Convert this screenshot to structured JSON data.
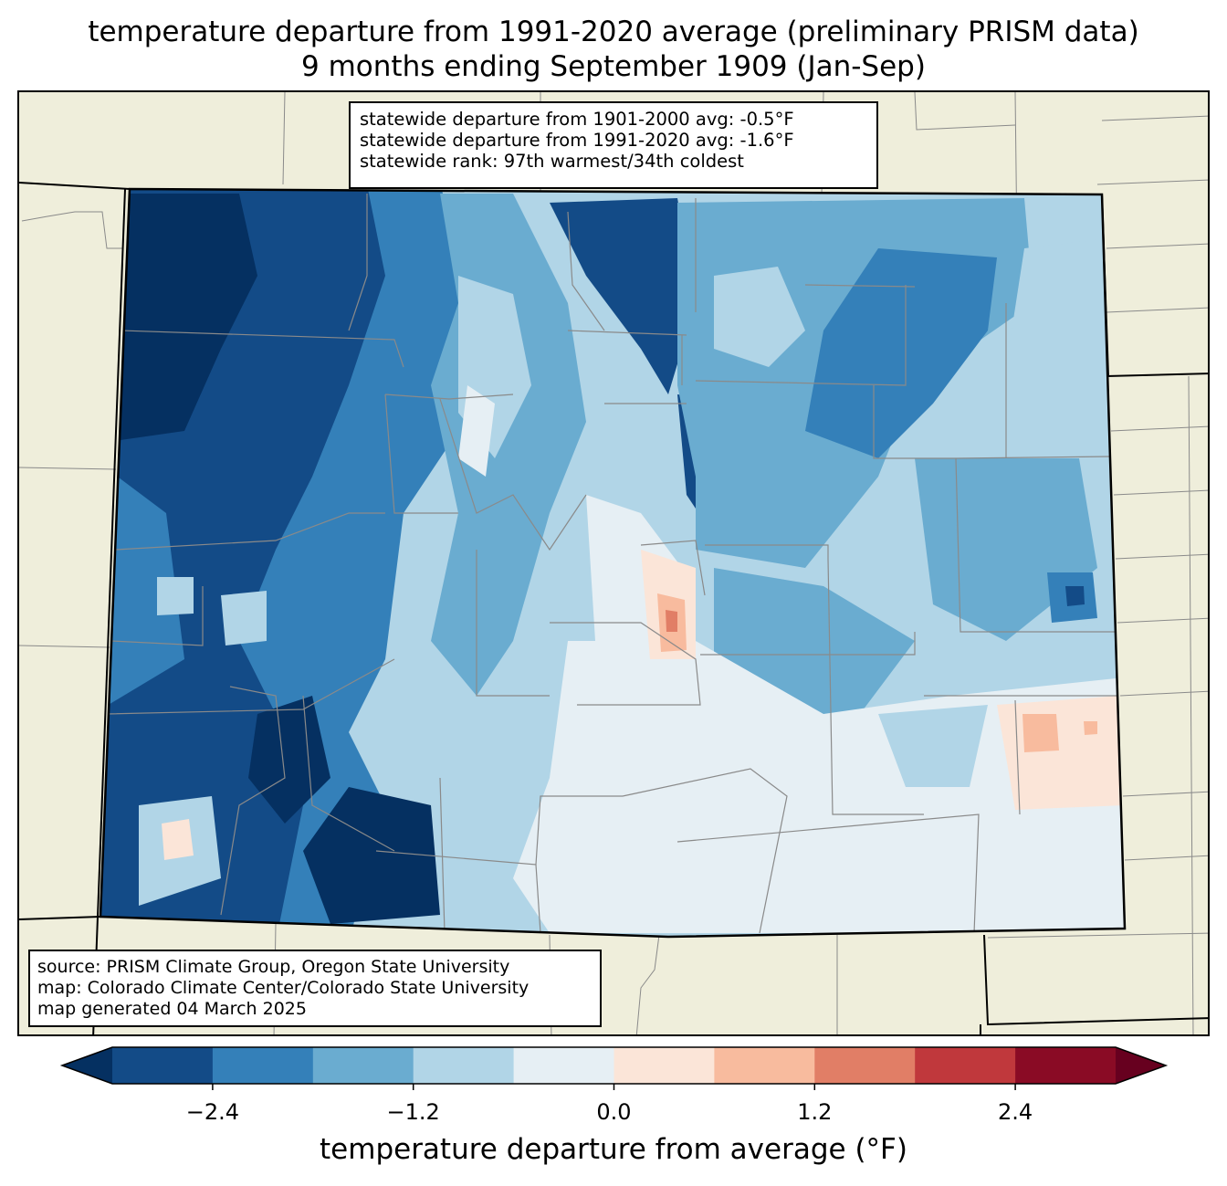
{
  "title": {
    "line1": "temperature departure from 1991-2020 average (preliminary PRISM data)",
    "line2": "9 months ending September 1909 (Jan-Sep)"
  },
  "stats_box": {
    "lines": [
      "statewide departure from 1901-2000 avg: -0.5°F",
      "statewide departure from 1991-2020 avg: -1.6°F",
      "statewide rank: 97th warmest/34th coldest"
    ]
  },
  "source_box": {
    "lines": [
      "source: PRISM Climate Group, Oregon State University",
      "map: Colorado Climate Center/Colorado State University",
      "map generated 04 March 2025"
    ]
  },
  "colorbar": {
    "label": "temperature departure from average (°F)",
    "ticks": [
      "−2.4",
      "−1.2",
      "0.0",
      "1.2",
      "2.4"
    ],
    "tick_values": [
      -2.4,
      -1.2,
      0.0,
      1.2,
      2.4
    ],
    "range": [
      -3.0,
      3.0
    ],
    "step": 0.6,
    "under_color": "#053061",
    "over_color": "#67001f",
    "colors": [
      "#134b87",
      "#3480b9",
      "#6aacd0",
      "#b1d5e7",
      "#e6eff4",
      "#fbe5d8",
      "#f8bb9e",
      "#e17e66",
      "#c0383c",
      "#8a0b25"
    ]
  },
  "map": {
    "land_color": "#efeedb",
    "state": "Colorado",
    "labels_shown": false
  }
}
